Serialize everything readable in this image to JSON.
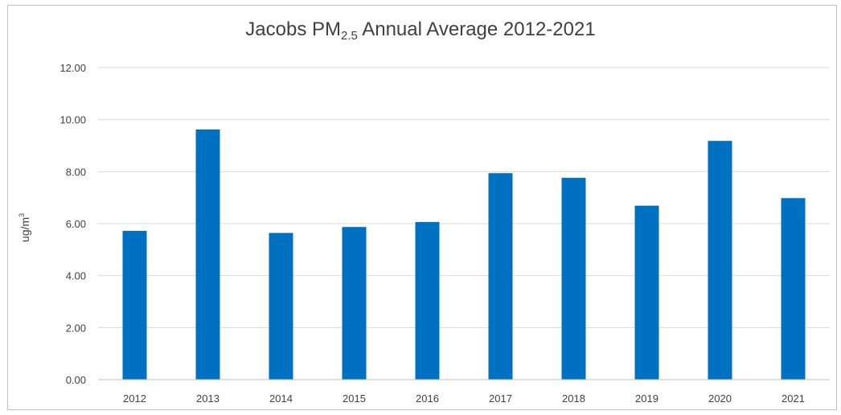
{
  "chart_data": {
    "type": "bar",
    "title": {
      "prefix": "Jacobs PM",
      "subscript": "2.5",
      "suffix": " Annual Average 2012-2021"
    },
    "ylabel": {
      "prefix": "ug/m",
      "superscript": "3"
    },
    "xlabel": "",
    "categories": [
      "2012",
      "2013",
      "2014",
      "2015",
      "2016",
      "2017",
      "2018",
      "2019",
      "2020",
      "2021"
    ],
    "values": [
      5.72,
      9.62,
      5.64,
      5.87,
      6.06,
      7.94,
      7.76,
      6.69,
      9.18,
      6.98
    ],
    "ylim": [
      0,
      12
    ],
    "yticks": [
      "0.00",
      "2.00",
      "4.00",
      "6.00",
      "8.00",
      "10.00",
      "12.00"
    ],
    "grid": true,
    "legend": "none",
    "colors": {
      "bar": "#0070C0",
      "grid": "#d9d9d9",
      "axis": "#bfbfbf",
      "text": "#404040"
    }
  }
}
